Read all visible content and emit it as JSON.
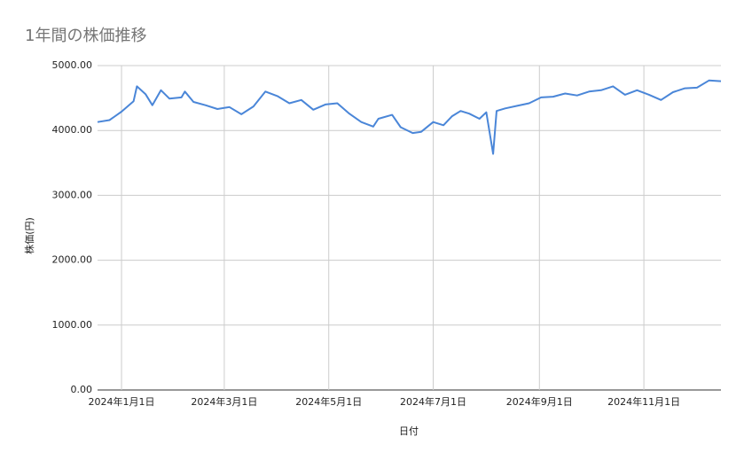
{
  "chart_data": {
    "type": "line",
    "title": "1年間の株価推移",
    "x_label": "日付",
    "y_label": "株価(円)",
    "x": [
      "2023-12-18",
      "2023-12-25",
      "2024-01-01",
      "2024-01-08",
      "2024-01-10",
      "2024-01-15",
      "2024-01-19",
      "2024-01-24",
      "2024-01-29",
      "2024-02-05",
      "2024-02-07",
      "2024-02-12",
      "2024-02-19",
      "2024-02-26",
      "2024-03-04",
      "2024-03-11",
      "2024-03-18",
      "2024-03-25",
      "2024-04-01",
      "2024-04-08",
      "2024-04-15",
      "2024-04-22",
      "2024-04-29",
      "2024-05-06",
      "2024-05-13",
      "2024-05-20",
      "2024-05-27",
      "2024-05-30",
      "2024-06-07",
      "2024-06-12",
      "2024-06-19",
      "2024-06-24",
      "2024-07-01",
      "2024-07-07",
      "2024-07-12",
      "2024-07-17",
      "2024-07-22",
      "2024-07-28",
      "2024-08-01",
      "2024-08-05",
      "2024-08-07",
      "2024-08-12",
      "2024-08-19",
      "2024-08-26",
      "2024-09-02",
      "2024-09-09",
      "2024-09-16",
      "2024-09-23",
      "2024-09-30",
      "2024-10-07",
      "2024-10-14",
      "2024-10-21",
      "2024-10-28",
      "2024-11-04",
      "2024-11-11",
      "2024-11-18",
      "2024-11-25",
      "2024-12-02",
      "2024-12-09",
      "2024-12-16"
    ],
    "series": [
      {
        "name": "株価",
        "color": "#4a86d8",
        "values": [
          4130,
          4160,
          4290,
          4450,
          4680,
          4560,
          4390,
          4620,
          4490,
          4510,
          4600,
          4440,
          4390,
          4330,
          4360,
          4250,
          4370,
          4600,
          4530,
          4420,
          4470,
          4320,
          4400,
          4420,
          4260,
          4130,
          4060,
          4180,
          4240,
          4050,
          3960,
          3980,
          4130,
          4080,
          4220,
          4300,
          4260,
          4180,
          4280,
          3640,
          4300,
          4340,
          4380,
          4420,
          4510,
          4520,
          4570,
          4540,
          4600,
          4620,
          4680,
          4550,
          4620,
          4550,
          4470,
          4590,
          4650,
          4660,
          4770,
          4760
        ]
      }
    ],
    "xlim": [
      "2023-12-18",
      "2024-12-16"
    ],
    "xticks": [
      {
        "value": "2024-01-01",
        "label": "2024年1月1日"
      },
      {
        "value": "2024-03-01",
        "label": "2024年3月1日"
      },
      {
        "value": "2024-05-01",
        "label": "2024年5月1日"
      },
      {
        "value": "2024-07-01",
        "label": "2024年7月1日"
      },
      {
        "value": "2024-09-01",
        "label": "2024年9月1日"
      },
      {
        "value": "2024-11-01",
        "label": "2024年11月1日"
      }
    ],
    "ylim": [
      0,
      5000
    ],
    "yticks": [
      {
        "value": 0,
        "label": "0.00"
      },
      {
        "value": 1000,
        "label": "1000.00"
      },
      {
        "value": 2000,
        "label": "2000.00"
      },
      {
        "value": 3000,
        "label": "3000.00"
      },
      {
        "value": 4000,
        "label": "4000.00"
      },
      {
        "value": 5000,
        "label": "5000.00"
      }
    ],
    "grid": true
  }
}
